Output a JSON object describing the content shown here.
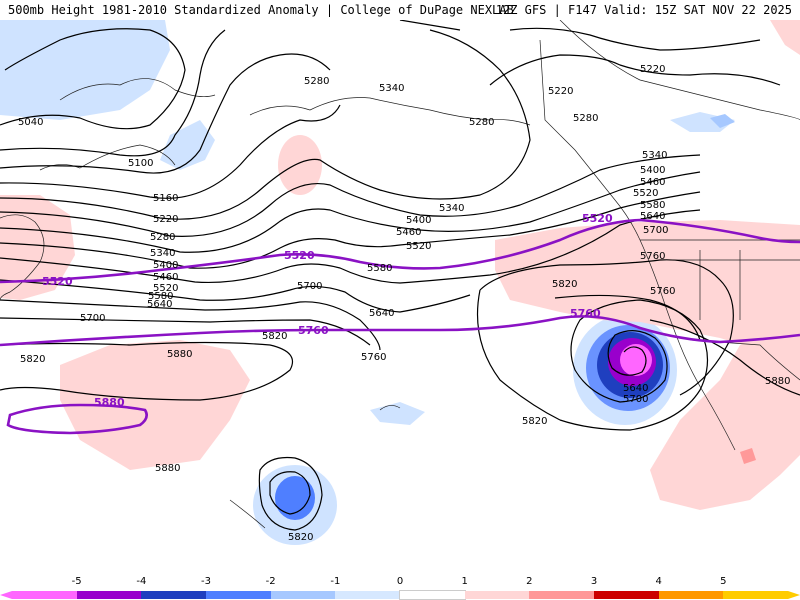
{
  "header": {
    "left": "500mb Height 1981-2010 Standardized Anomaly | College of DuPage NEXLAB",
    "right": "12Z GFS | F147 Valid: 15Z SAT NOV 22 2025"
  },
  "contour_labels": {
    "c5040": "5040",
    "c5100": "5100",
    "c5160": "5160",
    "c5220a": "5220",
    "c5220b": "5220",
    "c5220c": "5220",
    "c5280a": "5280",
    "c5280b": "5280",
    "c5280c": "5280",
    "c5280d": "5280",
    "c5340a": "5340",
    "c5340b": "5340",
    "c5340c": "5340",
    "c5340d": "5340",
    "c5400a": "5400",
    "c5400b": "5400",
    "c5400c": "5400",
    "c5460a": "5460",
    "c5460b": "5460",
    "c5460c": "5460",
    "c5520a": "5520",
    "c5520b": "5520",
    "c5520c": "5520",
    "c5580a": "5580",
    "c5580b": "5580",
    "c5580c": "5580",
    "c5640a": "5640",
    "c5640b": "5640",
    "c5640c": "5640",
    "c5640d": "5640",
    "c5700a": "5700",
    "c5700b": "5700",
    "c5700c": "5700",
    "c5700d": "5700",
    "c5760a": "5760",
    "c5760b": "5760",
    "c5760c": "5760",
    "c5820a": "5820",
    "c5820b": "5820",
    "c5820c": "5820",
    "c5820d": "5820",
    "c5820e": "5820",
    "c5880a": "5880",
    "c5880b": "5880",
    "c5880c": "5880"
  },
  "highlight_labels": {
    "h5520a": "5520",
    "h5520b": "5520",
    "h5520c": "5520",
    "h5760a": "5760",
    "h5760b": "5760",
    "h5880": "5880"
  },
  "colorbar": {
    "ticks": [
      "-5",
      "-4",
      "-3",
      "-2",
      "-1",
      "0",
      "1",
      "2",
      "3",
      "4",
      "5"
    ],
    "colors": [
      "#ff66ff",
      "#9900cc",
      "#1f3fbf",
      "#4f7fff",
      "#a6c8ff",
      "#d6e8ff",
      "#ffffff",
      "#ffd6d6",
      "#ff9999",
      "#cc0000",
      "#ff9900",
      "#ffcc00"
    ]
  }
}
